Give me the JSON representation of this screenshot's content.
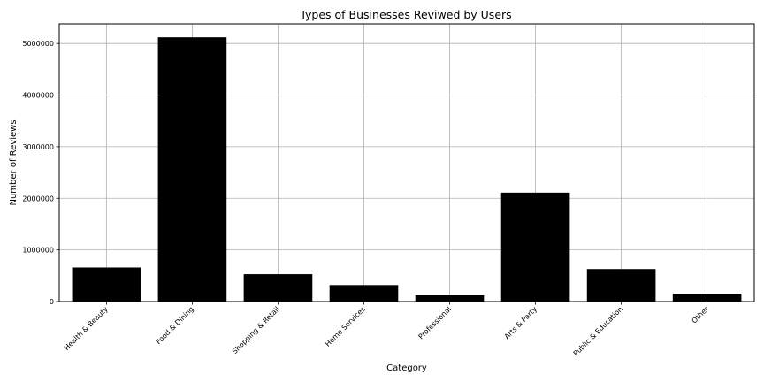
{
  "chart_data": {
    "type": "bar",
    "title": "Types of Businesses Reviwed by Users",
    "xlabel": "Category",
    "ylabel": "Number of Reviews",
    "categories": [
      "Health & Beauty",
      "Food & Dining",
      "Shopping & Retail",
      "Home Services",
      "Professional",
      "Arts & Party",
      "Public & Education",
      "Other"
    ],
    "values": [
      660000,
      5120000,
      530000,
      320000,
      120000,
      2110000,
      630000,
      150000
    ],
    "ylim": [
      0,
      5380000
    ],
    "yticks": [
      0,
      1000000,
      2000000,
      3000000,
      4000000,
      5000000
    ],
    "ytick_labels": [
      "0",
      "1000000",
      "2000000",
      "3000000",
      "4000000",
      "5000000"
    ],
    "grid": true,
    "bar_color": "#000000",
    "grid_color": "#b0b0b0"
  }
}
